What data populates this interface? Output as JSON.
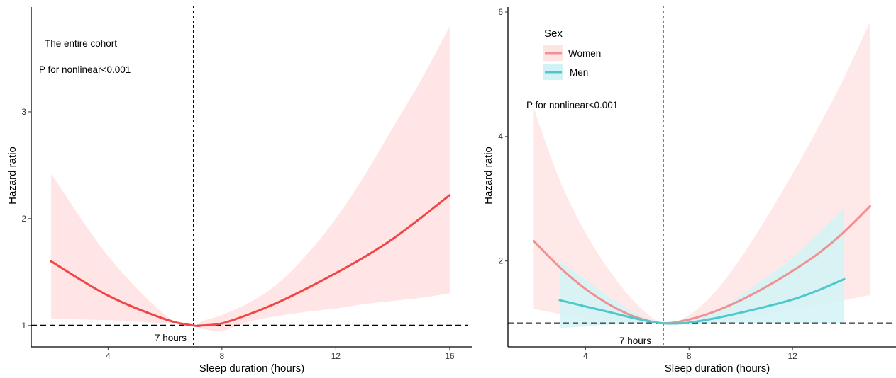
{
  "chart_data": [
    {
      "type": "line",
      "xlabel": "Sleep duration (hours)",
      "ylabel": "Hazard ratio",
      "xlim": [
        1.3,
        16.8
      ],
      "ylim": [
        0.8,
        3.98
      ],
      "xticks": [
        4,
        8,
        12,
        16
      ],
      "yticks": [
        1,
        2,
        3
      ],
      "annotations": [
        "The entire cohort",
        "P for nonlinear<0.001"
      ],
      "reference_lines": {
        "vertical_x": 7,
        "vertical_label": "7 hours",
        "horizontal_y": 1
      },
      "series": [
        {
          "color": "#f04646",
          "band_color": "#ffe0e0",
          "x": [
            2,
            4,
            6,
            7,
            7.3,
            8,
            9,
            10,
            11,
            12,
            13,
            14,
            15,
            16
          ],
          "y": [
            1.6,
            1.28,
            1.06,
            1.0,
            1.0,
            1.02,
            1.11,
            1.22,
            1.35,
            1.49,
            1.64,
            1.81,
            2.01,
            2.22
          ],
          "lower": [
            1.06,
            1.05,
            1.02,
            1.0,
            0.97,
            0.95,
            1.04,
            1.09,
            1.13,
            1.16,
            1.2,
            1.23,
            1.26,
            1.3
          ],
          "upper": [
            2.42,
            1.65,
            1.1,
            1.0,
            1.04,
            1.1,
            1.22,
            1.4,
            1.67,
            2.0,
            2.4,
            2.85,
            3.3,
            3.8
          ]
        }
      ]
    },
    {
      "type": "line",
      "xlabel": "Sleep duration (hours)",
      "ylabel": "Hazard ratio",
      "xlim": [
        1.0,
        16.0
      ],
      "ylim": [
        0.62,
        6.08
      ],
      "xticks": [
        4,
        8,
        12
      ],
      "yticks": [
        2,
        4,
        6
      ],
      "annotations": [
        "P for nonlinear<0.001"
      ],
      "reference_lines": {
        "vertical_x": 7,
        "vertical_label": "7 hours",
        "horizontal_y": 1
      },
      "legend": {
        "title": "Sex",
        "position": "top-left"
      },
      "series": [
        {
          "name": "Women",
          "color": "#f09090",
          "band_color": "#ffe4e4",
          "x": [
            2,
            3,
            4,
            5,
            6,
            7,
            8,
            9,
            10,
            11,
            12,
            13,
            14,
            15
          ],
          "y": [
            2.32,
            1.9,
            1.55,
            1.28,
            1.09,
            1.0,
            1.06,
            1.19,
            1.37,
            1.59,
            1.84,
            2.12,
            2.47,
            2.88
          ],
          "lower": [
            1.23,
            1.15,
            1.08,
            1.03,
            1.01,
            1.0,
            0.99,
            1.03,
            1.08,
            1.15,
            1.23,
            1.3,
            1.37,
            1.45
          ],
          "upper": [
            4.45,
            3.3,
            2.45,
            1.8,
            1.3,
            1.0,
            1.13,
            1.5,
            2.05,
            2.7,
            3.4,
            4.15,
            4.95,
            5.85
          ]
        },
        {
          "name": "Men",
          "color": "#4ec8cc",
          "band_color": "#d2f3f6",
          "x": [
            3,
            4,
            5,
            6,
            7,
            8,
            9,
            10,
            11,
            12,
            13,
            14
          ],
          "y": [
            1.37,
            1.27,
            1.17,
            1.07,
            1.0,
            1.01,
            1.08,
            1.17,
            1.27,
            1.38,
            1.53,
            1.71
          ],
          "lower": [
            0.92,
            0.95,
            0.98,
            0.99,
            1.0,
            0.98,
            0.99,
            1.0,
            1.0,
            1.0,
            1.0,
            1.0
          ],
          "upper": [
            2.0,
            1.7,
            1.4,
            1.15,
            1.0,
            1.05,
            1.2,
            1.45,
            1.75,
            2.05,
            2.45,
            2.85
          ]
        }
      ]
    }
  ]
}
